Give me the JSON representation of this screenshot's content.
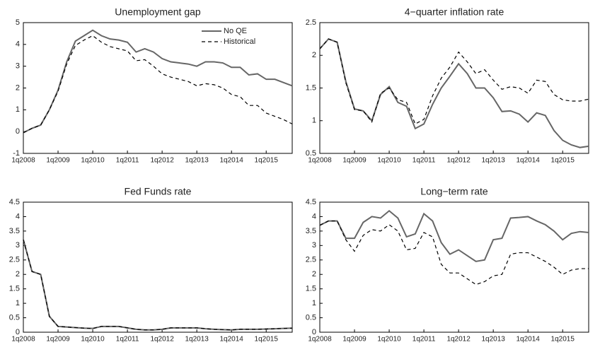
{
  "chart_data": [
    {
      "type": "line",
      "title": "Unemployment gap",
      "categories": [
        "1q2008",
        null,
        null,
        null,
        "1q2009",
        null,
        null,
        null,
        "1q2010",
        null,
        null,
        null,
        "1q2011",
        null,
        null,
        null,
        "1q2012",
        null,
        null,
        null,
        "1q2013",
        null,
        null,
        null,
        "1q2014",
        null,
        null,
        null,
        "1q2015",
        null,
        null,
        null
      ],
      "ylim": [
        -1,
        5
      ],
      "yticks": [
        -1,
        0,
        1,
        2,
        3,
        4,
        5
      ],
      "legend": "upper right",
      "series": [
        {
          "name": "No QE",
          "color": "#666666",
          "style": "solid",
          "values": [
            -0.05,
            0.15,
            0.3,
            1.0,
            1.9,
            3.2,
            4.15,
            4.4,
            4.65,
            4.4,
            4.25,
            4.2,
            4.1,
            3.65,
            3.8,
            3.65,
            3.35,
            3.2,
            3.15,
            3.1,
            3.0,
            3.2,
            3.2,
            3.15,
            2.95,
            2.95,
            2.6,
            2.65,
            2.4,
            2.4,
            2.25,
            2.1
          ]
        },
        {
          "name": "Historical",
          "color": "#000000",
          "style": "dashed",
          "values": [
            -0.05,
            0.15,
            0.3,
            1.0,
            1.85,
            3.1,
            3.95,
            4.2,
            4.4,
            4.1,
            3.9,
            3.8,
            3.7,
            3.25,
            3.3,
            3.0,
            2.65,
            2.5,
            2.4,
            2.3,
            2.1,
            2.2,
            2.15,
            2.0,
            1.7,
            1.6,
            1.2,
            1.2,
            0.85,
            0.7,
            0.55,
            0.35
          ]
        }
      ]
    },
    {
      "type": "line",
      "title": "4−quarter inflation rate",
      "categories": [
        "1q2008",
        null,
        null,
        null,
        "1q2009",
        null,
        null,
        null,
        "1q2010",
        null,
        null,
        null,
        "1q2011",
        null,
        null,
        null,
        "1q2012",
        null,
        null,
        null,
        "1q2013",
        null,
        null,
        null,
        "1q2014",
        null,
        null,
        null,
        "1q2015",
        null,
        null,
        null
      ],
      "ylim": [
        0.5,
        2.5
      ],
      "yticks": [
        0.5,
        1,
        1.5,
        2,
        2.5
      ],
      "series": [
        {
          "color": "#666666",
          "style": "solid",
          "values": [
            2.1,
            2.25,
            2.2,
            1.6,
            1.18,
            1.15,
            1.0,
            1.4,
            1.52,
            1.28,
            1.22,
            0.88,
            0.95,
            1.25,
            1.5,
            1.68,
            1.87,
            1.72,
            1.5,
            1.5,
            1.35,
            1.14,
            1.15,
            1.1,
            0.98,
            1.12,
            1.08,
            0.85,
            0.7,
            0.63,
            0.59,
            0.61
          ]
        },
        {
          "color": "#000000",
          "style": "dashed",
          "values": [
            2.1,
            2.25,
            2.2,
            1.58,
            1.17,
            1.15,
            0.98,
            1.42,
            1.5,
            1.32,
            1.28,
            0.95,
            1.02,
            1.38,
            1.65,
            1.82,
            2.05,
            1.9,
            1.72,
            1.78,
            1.62,
            1.48,
            1.52,
            1.5,
            1.42,
            1.62,
            1.6,
            1.4,
            1.32,
            1.3,
            1.3,
            1.33
          ]
        }
      ]
    },
    {
      "type": "line",
      "title": "Fed Funds rate",
      "categories": [
        "1q2008",
        null,
        null,
        null,
        "1q2009",
        null,
        null,
        null,
        "1q2010",
        null,
        null,
        null,
        "1q2011",
        null,
        null,
        null,
        "1q2012",
        null,
        null,
        null,
        "1q2013",
        null,
        null,
        null,
        "1q2014",
        null,
        null,
        null,
        "1q2015",
        null,
        null,
        null
      ],
      "ylim": [
        0,
        4.5
      ],
      "yticks": [
        0,
        0.5,
        1,
        1.5,
        2,
        2.5,
        3,
        3.5,
        4,
        4.5
      ],
      "series": [
        {
          "color": "#666666",
          "style": "solid",
          "values": [
            3.2,
            2.1,
            2.0,
            0.55,
            0.2,
            0.18,
            0.16,
            0.14,
            0.13,
            0.2,
            0.2,
            0.2,
            0.15,
            0.1,
            0.08,
            0.08,
            0.1,
            0.15,
            0.15,
            0.15,
            0.15,
            0.12,
            0.1,
            0.09,
            0.08,
            0.1,
            0.1,
            0.1,
            0.11,
            0.12,
            0.13,
            0.14
          ]
        },
        {
          "color": "#000000",
          "style": "dashed",
          "values": [
            3.2,
            2.1,
            2.0,
            0.55,
            0.2,
            0.18,
            0.16,
            0.14,
            0.13,
            0.2,
            0.2,
            0.2,
            0.15,
            0.1,
            0.08,
            0.08,
            0.1,
            0.15,
            0.15,
            0.15,
            0.15,
            0.12,
            0.1,
            0.09,
            0.08,
            0.1,
            0.1,
            0.1,
            0.11,
            0.12,
            0.13,
            0.14
          ]
        }
      ]
    },
    {
      "type": "line",
      "title": "Long−term rate",
      "categories": [
        "1q2008",
        null,
        null,
        null,
        "1q2009",
        null,
        null,
        null,
        "1q2010",
        null,
        null,
        null,
        "1q2011",
        null,
        null,
        null,
        "1q2012",
        null,
        null,
        null,
        "1q2013",
        null,
        null,
        null,
        "1q2014",
        null,
        null,
        null,
        "1q2015",
        null,
        null,
        null
      ],
      "ylim": [
        0,
        4.5
      ],
      "yticks": [
        0,
        0.5,
        1,
        1.5,
        2,
        2.5,
        3,
        3.5,
        4,
        4.5
      ],
      "series": [
        {
          "color": "#666666",
          "style": "solid",
          "values": [
            3.7,
            3.85,
            3.85,
            3.25,
            3.25,
            3.8,
            4.0,
            3.95,
            4.2,
            3.95,
            3.3,
            3.4,
            4.1,
            3.85,
            3.1,
            2.7,
            2.85,
            2.65,
            2.45,
            2.5,
            3.2,
            3.25,
            3.95,
            3.97,
            4.0,
            3.85,
            3.72,
            3.5,
            3.2,
            3.42,
            3.48,
            3.45
          ]
        },
        {
          "color": "#000000",
          "style": "dashed",
          "values": [
            3.7,
            3.85,
            3.85,
            3.2,
            2.8,
            3.35,
            3.55,
            3.5,
            3.72,
            3.5,
            2.85,
            2.9,
            3.45,
            3.3,
            2.35,
            2.05,
            2.05,
            1.85,
            1.65,
            1.75,
            1.95,
            2.0,
            2.7,
            2.75,
            2.75,
            2.6,
            2.45,
            2.25,
            2.0,
            2.15,
            2.2,
            2.2
          ]
        }
      ]
    }
  ]
}
